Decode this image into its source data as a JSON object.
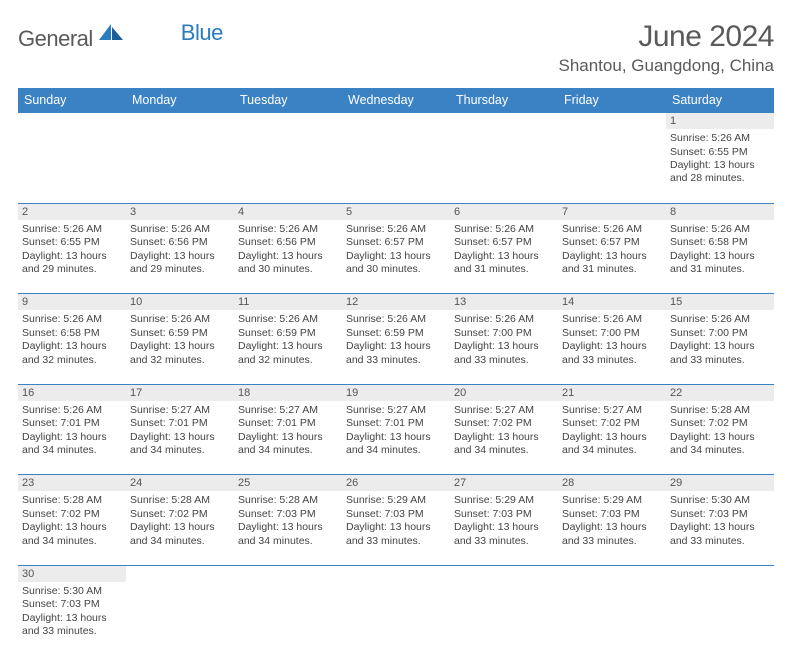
{
  "logo": {
    "main": "General",
    "sub": "Blue"
  },
  "title": "June 2024",
  "location": "Shantou, Guangdong, China",
  "header_bg": "#3a82c4",
  "daynum_bg": "#ececec",
  "days": [
    "Sunday",
    "Monday",
    "Tuesday",
    "Wednesday",
    "Thursday",
    "Friday",
    "Saturday"
  ],
  "weeks": [
    {
      "nums": [
        "",
        "",
        "",
        "",
        "",
        "",
        "1"
      ],
      "cells": [
        "",
        "",
        "",
        "",
        "",
        "",
        "Sunrise: 5:26 AM\nSunset: 6:55 PM\nDaylight: 13 hours and 28 minutes."
      ]
    },
    {
      "nums": [
        "2",
        "3",
        "4",
        "5",
        "6",
        "7",
        "8"
      ],
      "cells": [
        "Sunrise: 5:26 AM\nSunset: 6:55 PM\nDaylight: 13 hours and 29 minutes.",
        "Sunrise: 5:26 AM\nSunset: 6:56 PM\nDaylight: 13 hours and 29 minutes.",
        "Sunrise: 5:26 AM\nSunset: 6:56 PM\nDaylight: 13 hours and 30 minutes.",
        "Sunrise: 5:26 AM\nSunset: 6:57 PM\nDaylight: 13 hours and 30 minutes.",
        "Sunrise: 5:26 AM\nSunset: 6:57 PM\nDaylight: 13 hours and 31 minutes.",
        "Sunrise: 5:26 AM\nSunset: 6:57 PM\nDaylight: 13 hours and 31 minutes.",
        "Sunrise: 5:26 AM\nSunset: 6:58 PM\nDaylight: 13 hours and 31 minutes."
      ]
    },
    {
      "nums": [
        "9",
        "10",
        "11",
        "12",
        "13",
        "14",
        "15"
      ],
      "cells": [
        "Sunrise: 5:26 AM\nSunset: 6:58 PM\nDaylight: 13 hours and 32 minutes.",
        "Sunrise: 5:26 AM\nSunset: 6:59 PM\nDaylight: 13 hours and 32 minutes.",
        "Sunrise: 5:26 AM\nSunset: 6:59 PM\nDaylight: 13 hours and 32 minutes.",
        "Sunrise: 5:26 AM\nSunset: 6:59 PM\nDaylight: 13 hours and 33 minutes.",
        "Sunrise: 5:26 AM\nSunset: 7:00 PM\nDaylight: 13 hours and 33 minutes.",
        "Sunrise: 5:26 AM\nSunset: 7:00 PM\nDaylight: 13 hours and 33 minutes.",
        "Sunrise: 5:26 AM\nSunset: 7:00 PM\nDaylight: 13 hours and 33 minutes."
      ]
    },
    {
      "nums": [
        "16",
        "17",
        "18",
        "19",
        "20",
        "21",
        "22"
      ],
      "cells": [
        "Sunrise: 5:26 AM\nSunset: 7:01 PM\nDaylight: 13 hours and 34 minutes.",
        "Sunrise: 5:27 AM\nSunset: 7:01 PM\nDaylight: 13 hours and 34 minutes.",
        "Sunrise: 5:27 AM\nSunset: 7:01 PM\nDaylight: 13 hours and 34 minutes.",
        "Sunrise: 5:27 AM\nSunset: 7:01 PM\nDaylight: 13 hours and 34 minutes.",
        "Sunrise: 5:27 AM\nSunset: 7:02 PM\nDaylight: 13 hours and 34 minutes.",
        "Sunrise: 5:27 AM\nSunset: 7:02 PM\nDaylight: 13 hours and 34 minutes.",
        "Sunrise: 5:28 AM\nSunset: 7:02 PM\nDaylight: 13 hours and 34 minutes."
      ]
    },
    {
      "nums": [
        "23",
        "24",
        "25",
        "26",
        "27",
        "28",
        "29"
      ],
      "cells": [
        "Sunrise: 5:28 AM\nSunset: 7:02 PM\nDaylight: 13 hours and 34 minutes.",
        "Sunrise: 5:28 AM\nSunset: 7:02 PM\nDaylight: 13 hours and 34 minutes.",
        "Sunrise: 5:28 AM\nSunset: 7:03 PM\nDaylight: 13 hours and 34 minutes.",
        "Sunrise: 5:29 AM\nSunset: 7:03 PM\nDaylight: 13 hours and 33 minutes.",
        "Sunrise: 5:29 AM\nSunset: 7:03 PM\nDaylight: 13 hours and 33 minutes.",
        "Sunrise: 5:29 AM\nSunset: 7:03 PM\nDaylight: 13 hours and 33 minutes.",
        "Sunrise: 5:30 AM\nSunset: 7:03 PM\nDaylight: 13 hours and 33 minutes."
      ]
    },
    {
      "nums": [
        "30",
        "",
        "",
        "",
        "",
        "",
        ""
      ],
      "cells": [
        "Sunrise: 5:30 AM\nSunset: 7:03 PM\nDaylight: 13 hours and 33 minutes.",
        "",
        "",
        "",
        "",
        "",
        ""
      ]
    }
  ]
}
